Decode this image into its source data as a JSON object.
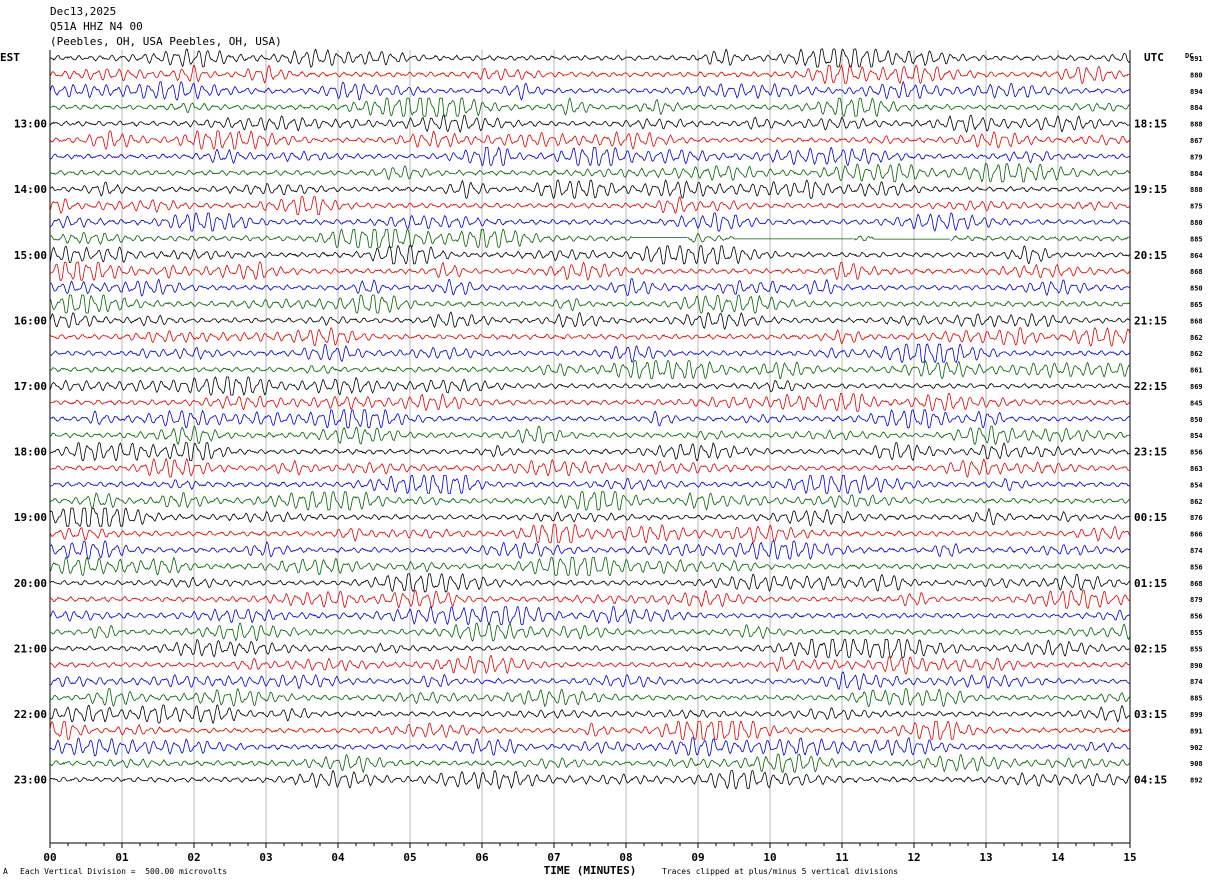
{
  "header": {
    "date": "Dec13,2025",
    "station": "Q51A HHZ N4 00",
    "location": "(Peebles, OH, USA Peebles, OH, USA)"
  },
  "chart_data": {
    "type": "line",
    "title": "Dec13,2025 Q51A HHZ N4 00",
    "xlabel": "TIME (MINUTES)",
    "x_ticks": [
      "00",
      "01",
      "02",
      "03",
      "04",
      "05",
      "06",
      "07",
      "08",
      "09",
      "10",
      "11",
      "12",
      "13",
      "14",
      "15"
    ],
    "xlim": [
      0,
      15
    ],
    "left_axis_label": "EST",
    "right_axis_label": "UTC",
    "dc_label": "DC",
    "left_hour_labels": [
      "13:00",
      "14:00",
      "15:00",
      "16:00",
      "17:00",
      "18:00",
      "19:00",
      "20:00",
      "21:00",
      "22:00",
      "23:00"
    ],
    "right_hour_labels": [
      "18:15",
      "19:15",
      "20:15",
      "21:15",
      "22:15",
      "23:15",
      "00:15",
      "01:15",
      "02:15",
      "03:15",
      "04:15"
    ],
    "first_labeled_trace": 4,
    "traces_per_hour": 4,
    "dc_offsets": [
      "891",
      "880",
      "894",
      "884",
      "888",
      "867",
      "879",
      "884",
      "888",
      "875",
      "880",
      "885",
      "864",
      "868",
      "850",
      "865",
      "868",
      "862",
      "862",
      "861",
      "869",
      "845",
      "850",
      "854",
      "856",
      "863",
      "854",
      "862",
      "876",
      "866",
      "874",
      "856",
      "868",
      "879",
      "856",
      "855",
      "855",
      "890",
      "874",
      "885",
      "899",
      "891",
      "902",
      "908",
      "892"
    ],
    "trace_colors": [
      "#000000",
      "#e00000",
      "#0000d0",
      "#006400"
    ],
    "gaps": [
      {
        "trace": 11,
        "from_min": 8.1,
        "to_min": 8.85
      },
      {
        "trace": 11,
        "from_min": 9.5,
        "to_min": 11.15
      },
      {
        "trace": 11,
        "from_min": 11.45,
        "to_min": 12.5
      }
    ],
    "footer_scale": "Each Vertical Division =  500.00 microvolts",
    "footer_clip": "Traces clipped at plus/minus 5 vertical divisions",
    "footer_mark": "A"
  },
  "colors": {
    "black": "#000000",
    "red": "#e00000",
    "blue": "#0000d0",
    "green": "#006400",
    "grid": "#888888"
  }
}
